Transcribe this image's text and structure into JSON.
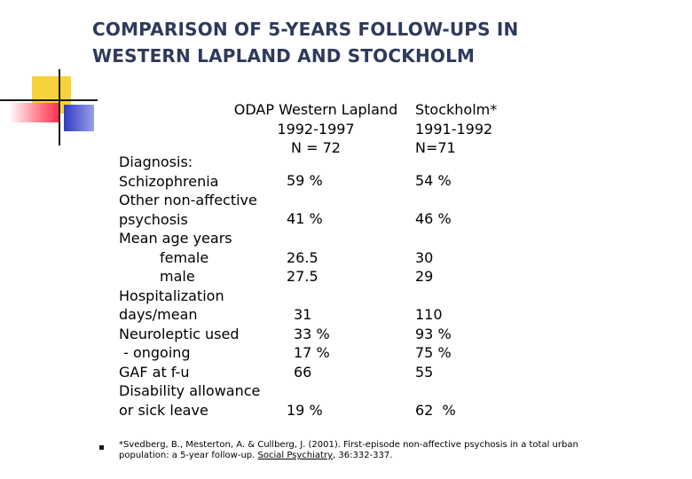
{
  "title": {
    "line1": "COMPARISON OF 5-YEARS FOLLOW-UPS IN",
    "line2": "WESTERN LAPLAND AND STOCKHOLM"
  },
  "columns": {
    "lapland": {
      "name": "ODAP Western Lapland",
      "years": "1992-1997",
      "n": "N = 72"
    },
    "stockholm": {
      "name": "Stockholm*",
      "years": "1991-1992",
      "n": "N=71"
    }
  },
  "rows": {
    "label_diagnosis": "Diagnosis:",
    "label_schizophrenia": "Schizophrenia",
    "label_other1": "Other non-affective",
    "label_other2": "psychosis",
    "label_mean_age": "Mean age years",
    "label_female": "female",
    "label_male": "male",
    "label_hosp1": "Hospitalization",
    "label_hosp2": "days/mean",
    "label_neuro": "Neuroleptic used",
    "label_ongoing": " - ongoing",
    "label_gaf": "GAF at f-u",
    "label_dis1": "Disability allowance",
    "label_dis2": "or sick leave"
  },
  "lapland_values": {
    "schizophrenia": "59 %",
    "other": "41 %",
    "female": "26.5",
    "male": "27.5",
    "hosp": "31",
    "neuro": "33 %",
    "ongoing": "17 %",
    "gaf": "66",
    "disability": "19 %"
  },
  "stockholm_values": {
    "schizophrenia": "54 %",
    "other": "46 %",
    "female": "30",
    "male": "29",
    "hosp": "110",
    "neuro": "93 %",
    "ongoing": "75 %",
    "gaf": "55",
    "disability": "62  %"
  },
  "footnote": {
    "line1": "*Svedberg, B., Mesterton, A. & Cullberg, J. (2001). First-episode non-affective psychosis in a total urban",
    "line2_pre": "population: a 5-year follow-up. ",
    "line2_journal": "Social Psychiatry",
    "line2_post": ", 36:332-337."
  }
}
